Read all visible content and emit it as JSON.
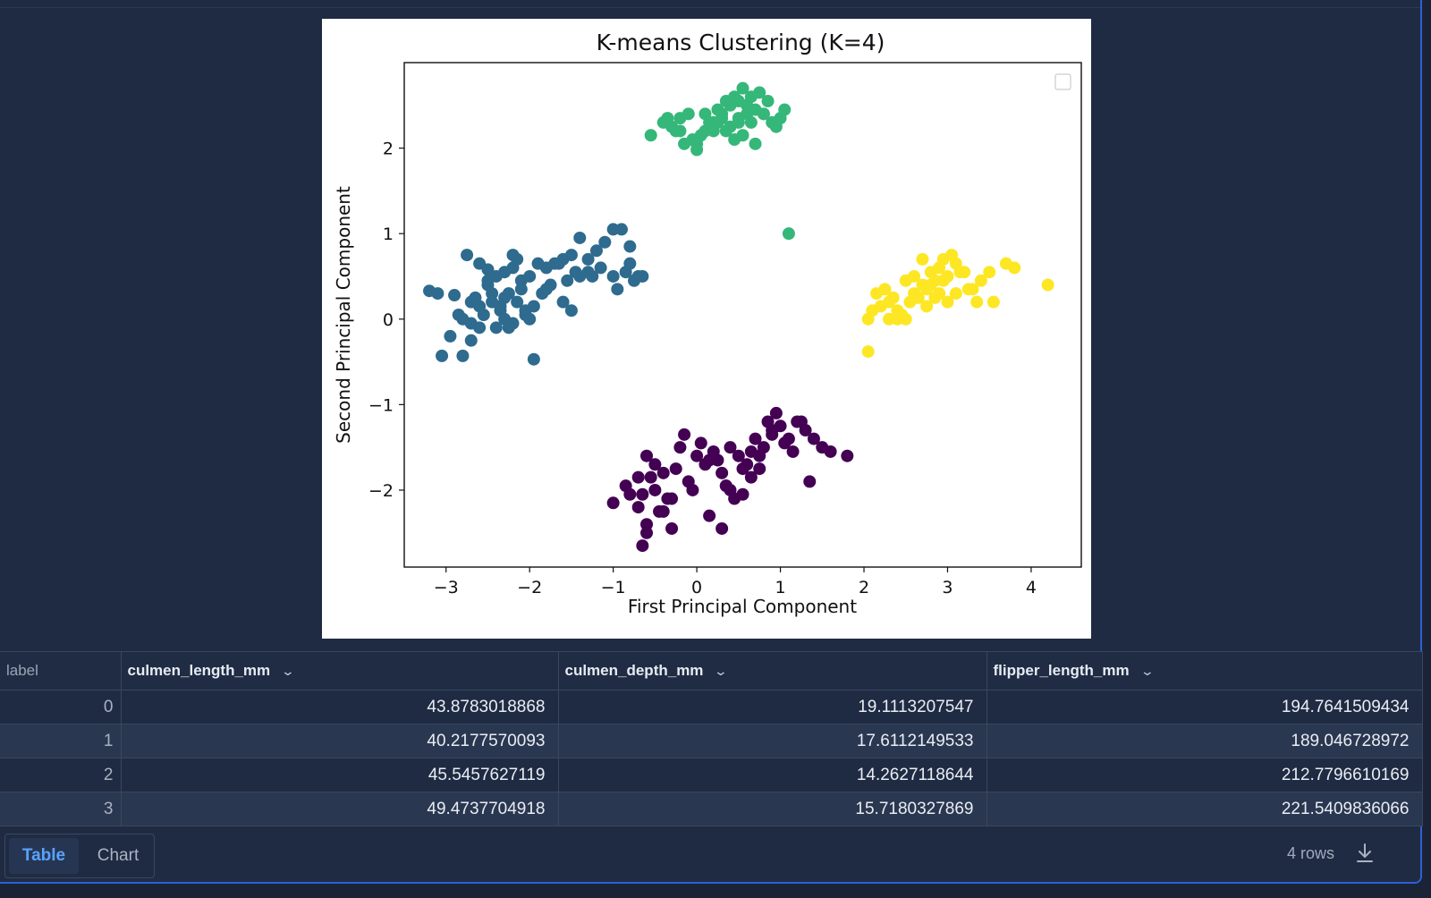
{
  "chart_data": {
    "type": "scatter",
    "title": "K-means Clustering (K=4)",
    "xlabel": "First Principal Component",
    "ylabel": "Second Principal Component",
    "xlim": [
      -3.5,
      4.6
    ],
    "ylim": [
      -2.9,
      3.0
    ],
    "xticks": [
      -3,
      -2,
      -1,
      0,
      1,
      2,
      3,
      4
    ],
    "yticks": [
      -2,
      -1,
      0,
      1,
      2
    ],
    "xtick_labels": [
      "−3",
      "−2",
      "−1",
      "0",
      "1",
      "2",
      "3",
      "4"
    ],
    "ytick_labels": [
      "−2",
      "−1",
      "0",
      "1",
      "2"
    ],
    "legend": "top-right (empty)",
    "grid": false,
    "series": [
      {
        "color": "#2e6b8e",
        "x": [
          -3.2,
          -3.05,
          -2.8,
          -2.6,
          -2.75,
          -2.9,
          -2.7,
          -2.5,
          -2.4,
          -2.3,
          -2.2,
          -2.1,
          -2.0,
          -1.9,
          -2.35,
          -2.55,
          -2.45,
          -2.25,
          -2.15,
          -2.05,
          -2.6,
          -2.4,
          -2.2,
          -2.3,
          -2.1,
          -2.5,
          -2.7,
          -2.85,
          -2.95,
          -2.6,
          -2.3,
          -2.15,
          -2.45,
          -2.2,
          -1.8,
          -1.7,
          -1.6,
          -1.5,
          -1.4,
          -1.3,
          -1.2,
          -1.1,
          -1.0,
          -0.9,
          -0.8,
          -0.7,
          -0.8,
          -0.75,
          -0.85,
          -1.0,
          -1.15,
          -1.3,
          -1.45,
          -1.55,
          -1.65,
          -1.75,
          -1.85,
          -1.95,
          -2.05,
          -2.25,
          -1.5,
          -1.6,
          -1.4,
          -1.25,
          -0.95,
          -0.65,
          -2.8,
          -2.7,
          -3.1,
          -1.95,
          -2.0,
          -1.8,
          -2.5,
          -2.35,
          -2.65
        ],
        "y": [
          0.33,
          -0.43,
          -0.43,
          0.65,
          0.75,
          0.28,
          0.2,
          0.4,
          0.5,
          0.55,
          0.6,
          0.45,
          0.5,
          0.65,
          0.1,
          0.05,
          0.3,
          0.3,
          0.2,
          0.1,
          0.15,
          -0.1,
          -0.05,
          0.0,
          0.35,
          0.58,
          -0.05,
          0.05,
          -0.2,
          -0.1,
          0.25,
          0.7,
          0.2,
          0.75,
          0.6,
          0.65,
          0.7,
          0.75,
          0.5,
          0.55,
          0.8,
          0.9,
          1.05,
          1.05,
          0.85,
          0.5,
          0.65,
          0.45,
          0.55,
          0.5,
          0.6,
          0.7,
          0.55,
          0.45,
          0.65,
          0.4,
          0.3,
          0.15,
          0.05,
          -0.1,
          0.1,
          0.2,
          0.95,
          0.5,
          0.35,
          0.5,
          0.0,
          -0.25,
          0.3,
          -0.47,
          0.0,
          0.35,
          0.45,
          0.15,
          0.25
        ]
      },
      {
        "color": "#35b779",
        "x": [
          -0.55,
          -0.4,
          -0.3,
          -0.2,
          -0.1,
          0.0,
          0.1,
          0.2,
          0.3,
          0.4,
          0.5,
          0.6,
          0.7,
          0.8,
          0.9,
          1.0,
          1.05,
          0.85,
          0.75,
          0.65,
          0.55,
          0.45,
          0.35,
          0.25,
          0.15,
          0.05,
          -0.05,
          -0.15,
          -0.25,
          -0.35,
          0.4,
          0.5,
          0.3,
          0.6,
          0.2,
          0.55,
          0.45,
          0.35,
          0.25,
          0.1,
          -0.2,
          0.0,
          0.7,
          0.95,
          0.65,
          0.8,
          0.5,
          1.1
        ],
        "y": [
          2.15,
          2.3,
          2.25,
          2.35,
          2.4,
          2.05,
          2.2,
          2.3,
          2.4,
          2.5,
          2.55,
          2.5,
          2.45,
          2.4,
          2.3,
          2.35,
          2.45,
          2.55,
          2.65,
          2.6,
          2.7,
          2.6,
          2.55,
          2.45,
          2.3,
          2.15,
          2.1,
          2.05,
          2.2,
          2.35,
          2.25,
          2.3,
          2.35,
          2.4,
          2.2,
          2.15,
          2.1,
          2.2,
          2.3,
          2.4,
          2.2,
          1.98,
          2.05,
          2.25,
          2.3,
          2.4,
          2.35,
          1.0
        ]
      },
      {
        "color": "#fde725",
        "x": [
          2.05,
          2.1,
          2.2,
          2.3,
          2.4,
          2.5,
          2.6,
          2.7,
          2.8,
          2.9,
          3.0,
          3.1,
          3.2,
          3.3,
          3.4,
          3.5,
          3.7,
          3.8,
          4.2,
          2.15,
          2.25,
          2.35,
          2.45,
          2.55,
          2.65,
          2.75,
          2.85,
          2.95,
          3.05,
          3.15,
          3.25,
          2.7,
          2.8,
          2.9,
          3.0,
          2.6,
          2.5,
          2.4,
          2.3,
          3.1,
          2.85,
          2.95,
          3.35,
          3.55,
          2.05,
          2.75
        ],
        "y": [
          0.0,
          0.1,
          0.15,
          0.2,
          0.1,
          0.0,
          0.3,
          0.4,
          0.55,
          0.6,
          0.5,
          0.65,
          0.55,
          0.35,
          0.45,
          0.55,
          0.65,
          0.6,
          0.4,
          0.3,
          0.35,
          0.25,
          0.05,
          0.2,
          0.25,
          0.35,
          0.45,
          0.7,
          0.75,
          0.55,
          0.35,
          0.7,
          0.4,
          0.3,
          0.2,
          0.5,
          0.45,
          0.0,
          0.0,
          0.3,
          0.25,
          0.45,
          0.2,
          0.2,
          -0.38,
          0.15
        ]
      },
      {
        "color": "#440154",
        "x": [
          -1.0,
          -0.85,
          -0.7,
          -0.6,
          -0.5,
          -0.4,
          -0.3,
          -0.2,
          -0.1,
          0.0,
          0.1,
          0.2,
          0.3,
          0.4,
          0.5,
          0.6,
          0.7,
          0.8,
          0.9,
          1.0,
          1.1,
          1.2,
          1.3,
          1.4,
          1.5,
          1.6,
          1.8,
          -0.65,
          -0.55,
          -0.45,
          -0.35,
          -0.25,
          -0.15,
          -0.05,
          0.05,
          0.15,
          0.25,
          0.35,
          0.45,
          0.55,
          0.65,
          0.75,
          0.85,
          0.95,
          1.05,
          1.15,
          -0.8,
          -0.7,
          -0.6,
          -0.5,
          -0.4,
          -0.3,
          0.3,
          0.4,
          0.55,
          0.65,
          -0.6,
          -0.65,
          1.35,
          0.15,
          0.35,
          0.75,
          0.9,
          1.25
        ],
        "y": [
          -2.15,
          -1.95,
          -2.2,
          -1.6,
          -2.0,
          -1.8,
          -2.1,
          -1.5,
          -1.9,
          -1.6,
          -1.7,
          -1.55,
          -1.8,
          -1.5,
          -1.6,
          -1.7,
          -1.4,
          -1.5,
          -1.3,
          -1.25,
          -1.4,
          -1.2,
          -1.3,
          -1.4,
          -1.5,
          -1.55,
          -1.6,
          -2.05,
          -1.85,
          -2.25,
          -2.1,
          -1.75,
          -1.35,
          -2.0,
          -1.45,
          -2.3,
          -1.65,
          -1.95,
          -2.1,
          -1.75,
          -1.85,
          -1.6,
          -1.2,
          -1.1,
          -1.45,
          -1.55,
          -2.05,
          -1.85,
          -2.4,
          -1.7,
          -2.25,
          -2.45,
          -2.45,
          -2.0,
          -2.05,
          -1.55,
          -2.5,
          -2.65,
          -1.9,
          -1.65,
          -1.95,
          -1.75,
          -1.35,
          -1.2
        ]
      }
    ]
  },
  "table": {
    "columns": [
      "label",
      "culmen_length_mm",
      "culmen_depth_mm",
      "flipper_length_mm"
    ],
    "rows": [
      [
        "0",
        "43.8783018868",
        "19.1113207547",
        "194.7641509434"
      ],
      [
        "1",
        "40.2177570093",
        "17.6112149533",
        "189.046728972"
      ],
      [
        "2",
        "45.5457627119",
        "14.2627118644",
        "212.7796610169"
      ],
      [
        "3",
        "49.4737704918",
        "15.7180327869",
        "221.5409836066"
      ]
    ]
  },
  "footer": {
    "tab_table": "Table",
    "tab_chart": "Chart",
    "row_count": "4 rows",
    "download_icon": "download-icon"
  }
}
